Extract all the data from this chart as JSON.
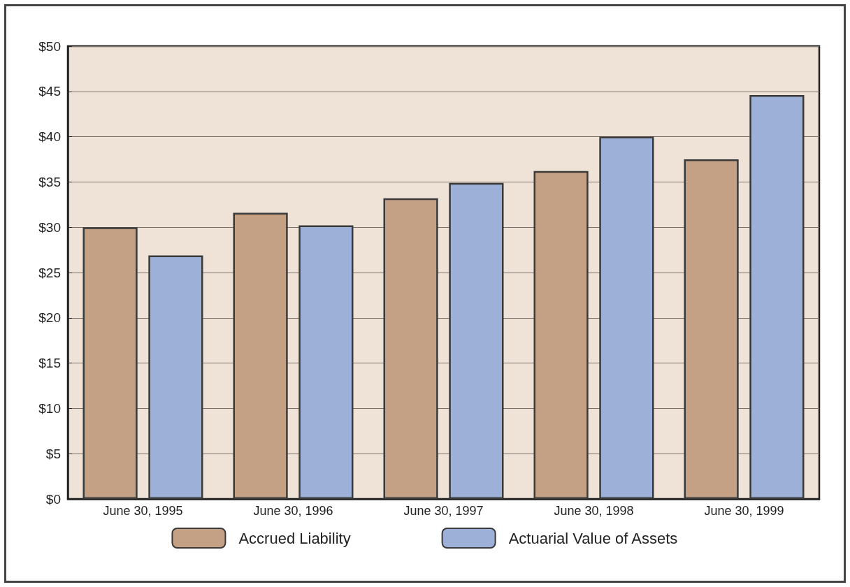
{
  "chart_data": {
    "type": "bar",
    "categories": [
      "June 30, 1995",
      "June 30, 1996",
      "June 30, 1997",
      "June 30, 1998",
      "June 30, 1999"
    ],
    "series": [
      {
        "name": "Accrued Liability",
        "color": "#c4a084",
        "values": [
          30.0,
          31.6,
          33.2,
          36.2,
          37.5
        ]
      },
      {
        "name": "Actuarial Value of Assets",
        "color": "#9cb0d8",
        "values": [
          26.9,
          30.2,
          34.9,
          40.0,
          44.6
        ]
      }
    ],
    "ylim": [
      0,
      50
    ],
    "yticks": [
      {
        "value": 0,
        "label": "$0"
      },
      {
        "value": 5,
        "label": "$5"
      },
      {
        "value": 10,
        "label": "$10"
      },
      {
        "value": 15,
        "label": "$15"
      },
      {
        "value": 20,
        "label": "$20"
      },
      {
        "value": 25,
        "label": "$25"
      },
      {
        "value": 30,
        "label": "$30"
      },
      {
        "value": 35,
        "label": "$35"
      },
      {
        "value": 40,
        "label": "$40"
      },
      {
        "value": 45,
        "label": "$45"
      },
      {
        "value": 50,
        "label": "$50"
      }
    ],
    "grid": "y",
    "legend": "bottom"
  }
}
